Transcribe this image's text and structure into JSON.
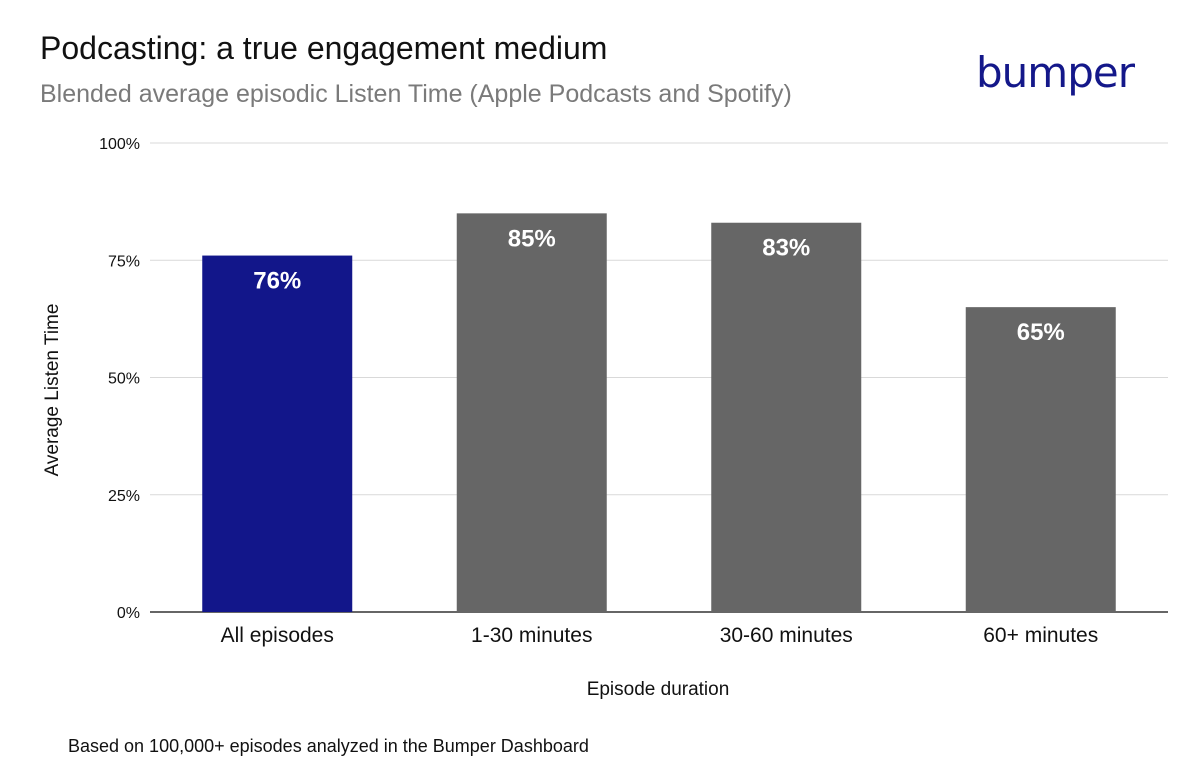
{
  "title": "Podcasting: a true engagement medium",
  "subtitle": "Blended average episodic Listen Time (Apple Podcasts and Spotify)",
  "brand": "bumper",
  "footnote": "Based on 100,000+ episodes analyzed in the Bumper Dashboard",
  "colors": {
    "highlight": "#12168a",
    "bar": "#666666",
    "grid": "#d9d9d9",
    "axis": "#333333",
    "brand": "#14188a"
  },
  "chart_data": {
    "type": "bar",
    "categories": [
      "All episodes",
      "1-30 minutes",
      "30-60 minutes",
      "60+ minutes"
    ],
    "values": [
      76,
      85,
      83,
      65
    ],
    "data_labels": [
      "76%",
      "85%",
      "83%",
      "65%"
    ],
    "highlight_index": 0,
    "xlabel": "Episode duration",
    "ylabel": "Average Listen Time",
    "ylim": [
      0,
      100
    ],
    "yticks": [
      0,
      25,
      50,
      75,
      100
    ],
    "ytick_labels": [
      "0%",
      "25%",
      "50%",
      "75%",
      "100%"
    ],
    "grid": true,
    "legend": "none"
  }
}
